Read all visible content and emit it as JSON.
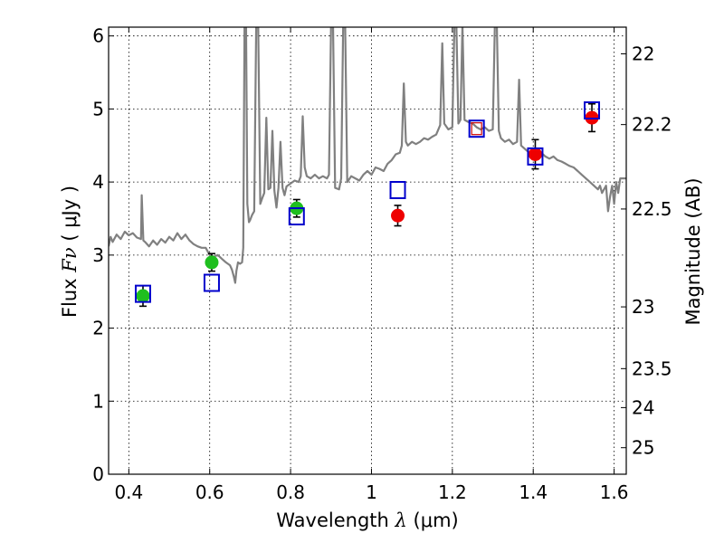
{
  "chart_data": {
    "type": "scatter",
    "xlabel_prefix": "Wavelength",
    "xlabel_symbol": "λ",
    "xlabel_unit": "(μm)",
    "ylabel_prefix": "Flux",
    "ylabel_symbol": "Fν",
    "ylabel_unit": "( μJy )",
    "y2label": "Magnitude (AB)",
    "xlim": [
      0.35,
      1.63
    ],
    "ylim": [
      0,
      6.12
    ],
    "grid": true,
    "x_ticks": [
      0.4,
      0.6,
      0.8,
      1.0,
      1.2,
      1.4,
      1.6
    ],
    "x_tick_labels": [
      "0.4",
      "0.6",
      "0.8",
      "1",
      "1.2",
      "1.4",
      "1.6"
    ],
    "y_ticks": [
      0,
      1,
      2,
      3,
      4,
      5,
      6
    ],
    "y_tick_labels": [
      "0",
      "1",
      "2",
      "3",
      "4",
      "5",
      "6"
    ],
    "y2_ticks": [
      22,
      22.2,
      22.5,
      23,
      23.5,
      24,
      25
    ],
    "y2_tick_labels": [
      "22",
      "22.2",
      "22.5",
      "23",
      "23.5",
      "24",
      "25"
    ],
    "colors": {
      "spectrum": "#808080",
      "green": "#1fbf1f",
      "red": "#ee0000",
      "square": "#0000cc",
      "square_highlight": "#cc0000",
      "errorbar": "#000000"
    },
    "series": [
      {
        "kind": "line",
        "color_key": "spectrum",
        "points": [
          [
            0.35,
            3.12
          ],
          [
            0.355,
            3.25
          ],
          [
            0.36,
            3.18
          ],
          [
            0.37,
            3.28
          ],
          [
            0.38,
            3.22
          ],
          [
            0.39,
            3.32
          ],
          [
            0.4,
            3.27
          ],
          [
            0.41,
            3.3
          ],
          [
            0.42,
            3.24
          ],
          [
            0.43,
            3.22
          ],
          [
            0.432,
            3.82
          ],
          [
            0.436,
            3.2
          ],
          [
            0.44,
            3.18
          ],
          [
            0.45,
            3.12
          ],
          [
            0.46,
            3.2
          ],
          [
            0.47,
            3.14
          ],
          [
            0.48,
            3.22
          ],
          [
            0.49,
            3.17
          ],
          [
            0.5,
            3.25
          ],
          [
            0.51,
            3.2
          ],
          [
            0.52,
            3.3
          ],
          [
            0.53,
            3.22
          ],
          [
            0.54,
            3.28
          ],
          [
            0.55,
            3.2
          ],
          [
            0.56,
            3.15
          ],
          [
            0.57,
            3.12
          ],
          [
            0.58,
            3.1
          ],
          [
            0.59,
            3.1
          ],
          [
            0.6,
            3.0
          ],
          [
            0.61,
            2.98
          ],
          [
            0.62,
            3.0
          ],
          [
            0.63,
            2.95
          ],
          [
            0.64,
            2.9
          ],
          [
            0.65,
            2.86
          ],
          [
            0.655,
            2.8
          ],
          [
            0.66,
            2.7
          ],
          [
            0.663,
            2.62
          ],
          [
            0.666,
            2.78
          ],
          [
            0.67,
            2.9
          ],
          [
            0.675,
            2.88
          ],
          [
            0.68,
            2.9
          ],
          [
            0.683,
            3.1
          ],
          [
            0.686,
            6.15
          ],
          [
            0.69,
            6.15
          ],
          [
            0.693,
            3.7
          ],
          [
            0.697,
            3.45
          ],
          [
            0.7,
            3.48
          ],
          [
            0.705,
            3.55
          ],
          [
            0.71,
            3.6
          ],
          [
            0.715,
            6.15
          ],
          [
            0.72,
            6.15
          ],
          [
            0.725,
            3.7
          ],
          [
            0.73,
            3.78
          ],
          [
            0.735,
            3.85
          ],
          [
            0.74,
            4.88
          ],
          [
            0.745,
            3.9
          ],
          [
            0.75,
            3.92
          ],
          [
            0.755,
            4.7
          ],
          [
            0.76,
            3.88
          ],
          [
            0.765,
            3.65
          ],
          [
            0.77,
            3.92
          ],
          [
            0.775,
            4.55
          ],
          [
            0.78,
            3.92
          ],
          [
            0.785,
            3.82
          ],
          [
            0.79,
            3.94
          ],
          [
            0.8,
            3.98
          ],
          [
            0.81,
            4.02
          ],
          [
            0.82,
            4.0
          ],
          [
            0.825,
            4.08
          ],
          [
            0.83,
            4.9
          ],
          [
            0.835,
            4.2
          ],
          [
            0.84,
            4.08
          ],
          [
            0.85,
            4.05
          ],
          [
            0.86,
            4.1
          ],
          [
            0.87,
            4.05
          ],
          [
            0.88,
            4.08
          ],
          [
            0.89,
            4.05
          ],
          [
            0.895,
            4.1
          ],
          [
            0.9,
            6.15
          ],
          [
            0.905,
            6.15
          ],
          [
            0.91,
            3.92
          ],
          [
            0.92,
            3.9
          ],
          [
            0.925,
            4.05
          ],
          [
            0.93,
            6.15
          ],
          [
            0.935,
            6.15
          ],
          [
            0.94,
            4.0
          ],
          [
            0.95,
            4.08
          ],
          [
            0.96,
            4.05
          ],
          [
            0.97,
            4.02
          ],
          [
            0.98,
            4.1
          ],
          [
            0.99,
            4.15
          ],
          [
            1.0,
            4.1
          ],
          [
            1.01,
            4.2
          ],
          [
            1.02,
            4.18
          ],
          [
            1.03,
            4.15
          ],
          [
            1.04,
            4.25
          ],
          [
            1.05,
            4.3
          ],
          [
            1.06,
            4.38
          ],
          [
            1.07,
            4.4
          ],
          [
            1.075,
            4.5
          ],
          [
            1.08,
            5.35
          ],
          [
            1.085,
            4.55
          ],
          [
            1.09,
            4.5
          ],
          [
            1.1,
            4.55
          ],
          [
            1.11,
            4.52
          ],
          [
            1.12,
            4.55
          ],
          [
            1.13,
            4.6
          ],
          [
            1.14,
            4.58
          ],
          [
            1.15,
            4.62
          ],
          [
            1.16,
            4.65
          ],
          [
            1.17,
            4.78
          ],
          [
            1.175,
            5.9
          ],
          [
            1.18,
            4.8
          ],
          [
            1.19,
            4.72
          ],
          [
            1.2,
            4.75
          ],
          [
            1.205,
            6.15
          ],
          [
            1.21,
            6.15
          ],
          [
            1.215,
            4.8
          ],
          [
            1.22,
            4.85
          ],
          [
            1.225,
            6.15
          ],
          [
            1.23,
            4.85
          ],
          [
            1.24,
            4.82
          ],
          [
            1.25,
            4.8
          ],
          [
            1.26,
            4.75
          ],
          [
            1.27,
            4.72
          ],
          [
            1.28,
            4.75
          ],
          [
            1.29,
            4.7
          ],
          [
            1.3,
            4.72
          ],
          [
            1.305,
            6.15
          ],
          [
            1.31,
            6.15
          ],
          [
            1.315,
            4.7
          ],
          [
            1.32,
            4.6
          ],
          [
            1.33,
            4.55
          ],
          [
            1.34,
            4.58
          ],
          [
            1.35,
            4.52
          ],
          [
            1.36,
            4.55
          ],
          [
            1.365,
            5.4
          ],
          [
            1.37,
            4.5
          ],
          [
            1.38,
            4.45
          ],
          [
            1.39,
            4.4
          ],
          [
            1.4,
            4.42
          ],
          [
            1.41,
            4.45
          ],
          [
            1.42,
            4.4
          ],
          [
            1.43,
            4.35
          ],
          [
            1.44,
            4.32
          ],
          [
            1.45,
            4.35
          ],
          [
            1.46,
            4.3
          ],
          [
            1.47,
            4.28
          ],
          [
            1.48,
            4.25
          ],
          [
            1.49,
            4.22
          ],
          [
            1.5,
            4.2
          ],
          [
            1.51,
            4.15
          ],
          [
            1.52,
            4.1
          ],
          [
            1.53,
            4.05
          ],
          [
            1.54,
            4.0
          ],
          [
            1.55,
            3.95
          ],
          [
            1.56,
            3.9
          ],
          [
            1.565,
            3.95
          ],
          [
            1.57,
            3.85
          ],
          [
            1.58,
            3.95
          ],
          [
            1.585,
            3.6
          ],
          [
            1.59,
            3.8
          ],
          [
            1.595,
            3.95
          ],
          [
            1.6,
            3.7
          ],
          [
            1.605,
            4.0
          ],
          [
            1.61,
            3.85
          ],
          [
            1.615,
            4.05
          ],
          [
            1.62,
            4.05
          ],
          [
            1.63,
            4.05
          ]
        ]
      },
      {
        "kind": "points",
        "marker": "circle",
        "color_key": "green",
        "points": [
          {
            "x": 0.435,
            "y": 2.44,
            "err": 0.14
          },
          {
            "x": 0.605,
            "y": 2.9,
            "err": 0.12
          },
          {
            "x": 0.815,
            "y": 3.64,
            "err": 0.12
          }
        ]
      },
      {
        "kind": "points",
        "marker": "circle",
        "color_key": "red",
        "points": [
          {
            "x": 1.065,
            "y": 3.54,
            "err": 0.14
          },
          {
            "x": 1.405,
            "y": 4.38,
            "err": 0.2
          },
          {
            "x": 1.545,
            "y": 4.88,
            "err": 0.19
          }
        ]
      },
      {
        "kind": "points",
        "marker": "square",
        "color_key": "square",
        "points": [
          {
            "x": 0.435,
            "y": 2.47
          },
          {
            "x": 0.605,
            "y": 2.62
          },
          {
            "x": 0.815,
            "y": 3.53
          },
          {
            "x": 1.065,
            "y": 3.89
          },
          {
            "x": 1.26,
            "y": 4.73,
            "highlight": true
          },
          {
            "x": 1.405,
            "y": 4.35
          },
          {
            "x": 1.545,
            "y": 4.98
          }
        ]
      }
    ]
  }
}
